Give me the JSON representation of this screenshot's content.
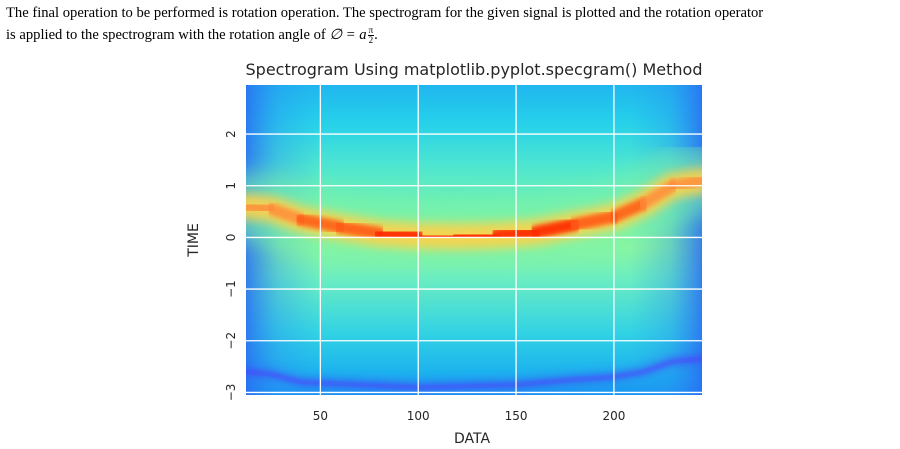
{
  "paragraph": {
    "line1": "The final operation to be performed is rotation operation. The spectrogram for the given signal is plotted and the rotation operator",
    "line2_prefix": "is applied to the spectrogram with the rotation angle of",
    "math_phi": "∅ = a",
    "frac_num": "π",
    "frac_den": "2",
    "line2_suffix": "."
  },
  "chart_data": {
    "type": "heatmap",
    "title": "Spectrogram Using matplotlib.pyplot.specgram() Method",
    "xlabel": "DATA",
    "ylabel": "TIME",
    "xlim": [
      12,
      245
    ],
    "ylim": [
      -3.05,
      2.95
    ],
    "xticks": [
      50,
      100,
      150,
      200
    ],
    "yticks": [
      2,
      1,
      0,
      -1,
      -2,
      -3
    ],
    "xtick_labels": [
      "50",
      "100",
      "150",
      "200"
    ],
    "ytick_labels": [
      "2",
      "1",
      "0",
      "−1",
      "−2",
      "−3"
    ],
    "grid": true,
    "colormap": "rainbow",
    "ridge": {
      "x": [
        12,
        25,
        40,
        60,
        80,
        100,
        120,
        140,
        160,
        180,
        200,
        215,
        230,
        245
      ],
      "y": [
        0.6,
        0.55,
        0.35,
        0.2,
        0.08,
        0.03,
        0.02,
        0.04,
        0.1,
        0.25,
        0.4,
        0.65,
        1.0,
        1.1
      ],
      "intensity": [
        0.6,
        0.65,
        0.75,
        0.85,
        0.95,
        1.0,
        1.0,
        1.0,
        0.95,
        0.92,
        0.85,
        0.75,
        0.65,
        0.6
      ]
    },
    "low_band": {
      "x": [
        12,
        25,
        40,
        100,
        150,
        180,
        200,
        215,
        230,
        245
      ],
      "y": [
        -2.6,
        -2.65,
        -2.8,
        -2.9,
        -2.85,
        -2.75,
        -2.7,
        -2.6,
        -2.4,
        -2.35
      ]
    },
    "colors": {
      "ridge_core": "#ff2a00",
      "ridge_mid": "#ffd24a",
      "band_green": "#7af2a8",
      "field_cyan": "#22c8ea",
      "edge_blue": "#2a6cf2",
      "low_band": "#5b2cff",
      "grid": "#ffffff"
    }
  }
}
